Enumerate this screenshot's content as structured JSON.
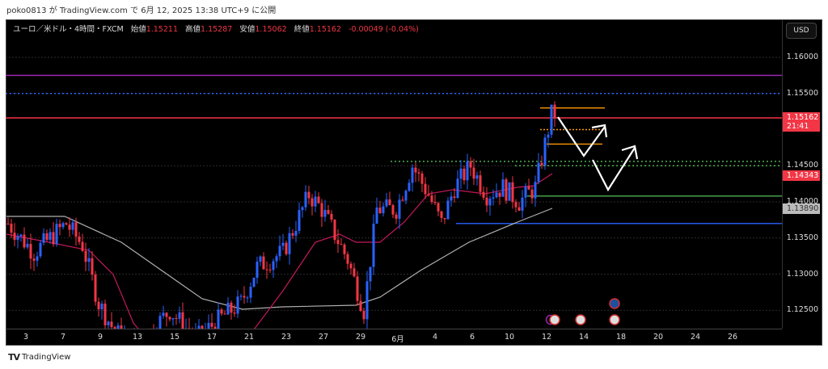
{
  "published": "poko0813 が TradingView.com で 6月 12, 2025 13:38 UTC+9 に公開",
  "legend": {
    "symbol": "ユーロ／米ドル・4時間・FXCM",
    "open_label": "始値",
    "open": "1.15211",
    "high_label": "高値",
    "high": "1.15287",
    "low_label": "安値",
    "low": "1.15062",
    "close_label": "終値",
    "close": "1.15162",
    "change": "-0.00049 (-0.04%)"
  },
  "currency_button": "USD",
  "price_ticks": [
    "1.16000",
    "1.15500",
    "1.14500",
    "1.14000",
    "1.13500",
    "1.13000",
    "1.12500"
  ],
  "price_tags": {
    "last_price": "1.15162",
    "countdown": "21:41",
    "ma_fast": "1.14343",
    "ma_slow": "1.13890"
  },
  "time_ticks": [
    "3",
    "7",
    "9",
    "13",
    "15",
    "17",
    "21",
    "23",
    "27",
    "29",
    "6月",
    "4",
    "6",
    "10",
    "12",
    "14",
    "18",
    "20",
    "24",
    "26"
  ],
  "footer_logo": "TradingView",
  "colors": {
    "up": "#2962ff",
    "down": "#f23645",
    "ma_fast": "#c2185b",
    "ma_slow": "#b0b0b0",
    "orange": "#ff9800",
    "green": "#4caf50",
    "purple": "#9c27b0"
  },
  "chart_data": {
    "type": "candlestick",
    "title": "EUR/USD 4H FXCM",
    "ylim": [
      1.122,
      1.164
    ],
    "price_path": [
      [
        0,
        1.137
      ],
      [
        8,
        1.133
      ],
      [
        18,
        1.137
      ],
      [
        23,
        1.134
      ],
      [
        28,
        1.126
      ],
      [
        33,
        1.122
      ],
      [
        40,
        1.12
      ],
      [
        50,
        1.125
      ],
      [
        58,
        1.121
      ],
      [
        66,
        1.124
      ],
      [
        72,
        1.126
      ],
      [
        77,
        1.131
      ],
      [
        85,
        1.133
      ],
      [
        93,
        1.141
      ],
      [
        97,
        1.139
      ],
      [
        105,
        1.132
      ],
      [
        110,
        1.125
      ],
      [
        114,
        1.139
      ],
      [
        120,
        1.139
      ],
      [
        125,
        1.145
      ],
      [
        130,
        1.141
      ],
      [
        134,
        1.137
      ],
      [
        138,
        1.142
      ],
      [
        143,
        1.145
      ],
      [
        148,
        1.141
      ],
      [
        153,
        1.142
      ],
      [
        158,
        1.14
      ],
      [
        163,
        1.142
      ],
      [
        166,
        1.148
      ],
      [
        168,
        1.1521
      ],
      [
        169,
        1.15162
      ]
    ],
    "levels": [
      {
        "name": "purple-resistance",
        "price": 1.1575
      },
      {
        "name": "blue-dotted-resistance",
        "price": 1.155
      },
      {
        "name": "last-price-line",
        "price": 1.15162
      },
      {
        "name": "orange-top",
        "price": 1.153
      },
      {
        "name": "orange-mid-dotted",
        "price": 1.15
      },
      {
        "name": "orange-bottom",
        "price": 1.148
      },
      {
        "name": "green-dotted-upper",
        "price": 1.1456
      },
      {
        "name": "green-dotted-lower",
        "price": 1.145
      },
      {
        "name": "green-support",
        "price": 1.1408
      },
      {
        "name": "blue-support",
        "price": 1.137
      }
    ]
  }
}
